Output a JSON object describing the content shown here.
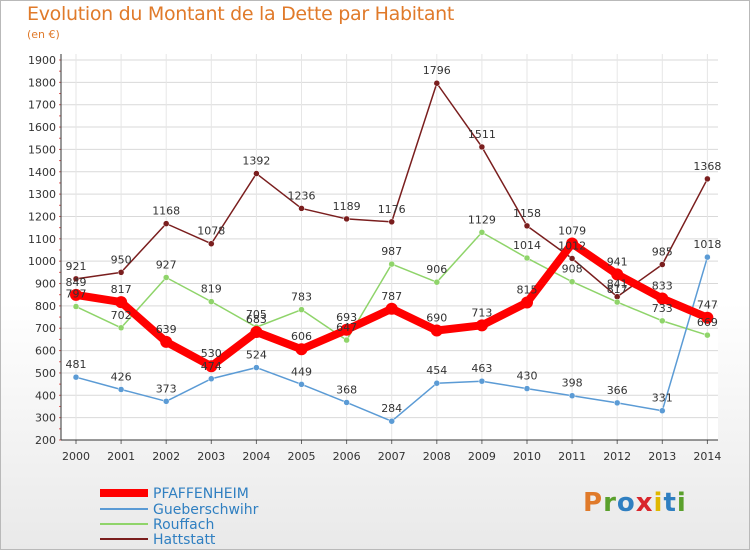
{
  "title": "Evolution du Montant de la Dette par Habitant",
  "subtitle": "(en €)",
  "logo": {
    "text": "Proxiti",
    "colors": [
      "#e07a2a",
      "#5aa02c",
      "#2f7fc1",
      "#d9262c",
      "#e0b800",
      "#2f7fc1",
      "#5aa02c"
    ]
  },
  "chart_data": {
    "type": "line",
    "x": [
      "2000",
      "2001",
      "2002",
      "2003",
      "2004",
      "2005",
      "2006",
      "2007",
      "2008",
      "2009",
      "2010",
      "2011",
      "2012",
      "2013",
      "2014"
    ],
    "ylim": [
      200,
      1900
    ],
    "yticks": [
      200,
      300,
      400,
      500,
      600,
      700,
      800,
      900,
      1000,
      1100,
      1200,
      1300,
      1400,
      1500,
      1600,
      1700,
      1800,
      1900
    ],
    "grid": true,
    "legend_placement": "bottom-left",
    "series": [
      {
        "name": "Hattstatt",
        "color": "#7a1e1e",
        "values": [
          921,
          950,
          1168,
          1078,
          1392,
          1236,
          1189,
          1176,
          1796,
          1511,
          1158,
          1012,
          841,
          985,
          1368
        ],
        "labels": [
          "921",
          "950",
          "1168",
          "1078",
          "1392",
          "1236",
          "1189",
          "1176",
          "1796",
          "1511",
          "1158",
          "1012",
          "841",
          "985",
          "1368"
        ]
      },
      {
        "name": "Rouffach",
        "color": "#8fd46a",
        "values": [
          797,
          702,
          927,
          819,
          705,
          783,
          647,
          987,
          906,
          1129,
          1014,
          908,
          817,
          733,
          669
        ],
        "labels": [
          "797",
          "702",
          "927",
          "819",
          "705",
          "783",
          "647",
          "987",
          "906",
          "1129",
          "1014",
          "908",
          "817",
          "733",
          "669"
        ]
      },
      {
        "name": "Gueberschwihr",
        "color": "#5b9bd5",
        "values": [
          481,
          426,
          373,
          474,
          524,
          449,
          368,
          284,
          454,
          463,
          430,
          398,
          366,
          331,
          1018
        ],
        "labels": [
          "481",
          "426",
          "373",
          "474",
          "524",
          "449",
          "368",
          "284",
          "454",
          "463",
          "430",
          "398",
          "366",
          "331",
          "1018"
        ]
      },
      {
        "name": "PFAFFENHEIM",
        "color": "#ff0000",
        "values": [
          849,
          817,
          639,
          530,
          683,
          606,
          693,
          787,
          690,
          713,
          815,
          1079,
          941,
          833,
          747
        ],
        "labels": [
          "849",
          "817",
          "639",
          "530",
          "683",
          "606",
          "693",
          "787",
          "690",
          "713",
          "815",
          "1079",
          "941",
          "833",
          "747"
        ]
      }
    ],
    "legend": [
      "PFAFFENHEIM",
      "Gueberschwihr",
      "Rouffach",
      "Hattstatt"
    ]
  }
}
